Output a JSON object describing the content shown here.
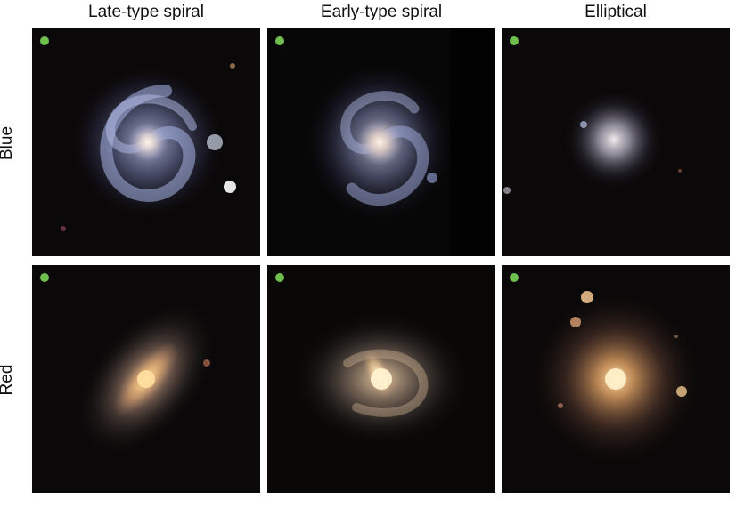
{
  "columns": [
    {
      "title": "Late-type spiral"
    },
    {
      "title": "Early-type spiral"
    },
    {
      "title": "Elliptical"
    }
  ],
  "rows": [
    {
      "label": "Blue"
    },
    {
      "label": "Red"
    }
  ],
  "panels": [
    {
      "row": "Blue",
      "column": "Late-type spiral",
      "subject": "blue face-on spiral galaxy with open arms",
      "marker_color": "#6fbf4e"
    },
    {
      "row": "Blue",
      "column": "Early-type spiral",
      "subject": "blue spiral galaxy with bright bulge",
      "marker_color": "#6fbf4e"
    },
    {
      "row": "Blue",
      "column": "Elliptical",
      "subject": "small blue-white elliptical galaxy",
      "marker_color": "#6fbf4e"
    },
    {
      "row": "Red",
      "column": "Late-type spiral",
      "subject": "inclined red-orange spiral galaxy",
      "marker_color": "#6fbf4e"
    },
    {
      "row": "Red",
      "column": "Early-type spiral",
      "subject": "red spiral galaxy with bright bar-like bulge",
      "marker_color": "#6fbf4e"
    },
    {
      "row": "Red",
      "column": "Elliptical",
      "subject": "large orange elliptical galaxy with nearby stars",
      "marker_color": "#6fbf4e"
    }
  ]
}
